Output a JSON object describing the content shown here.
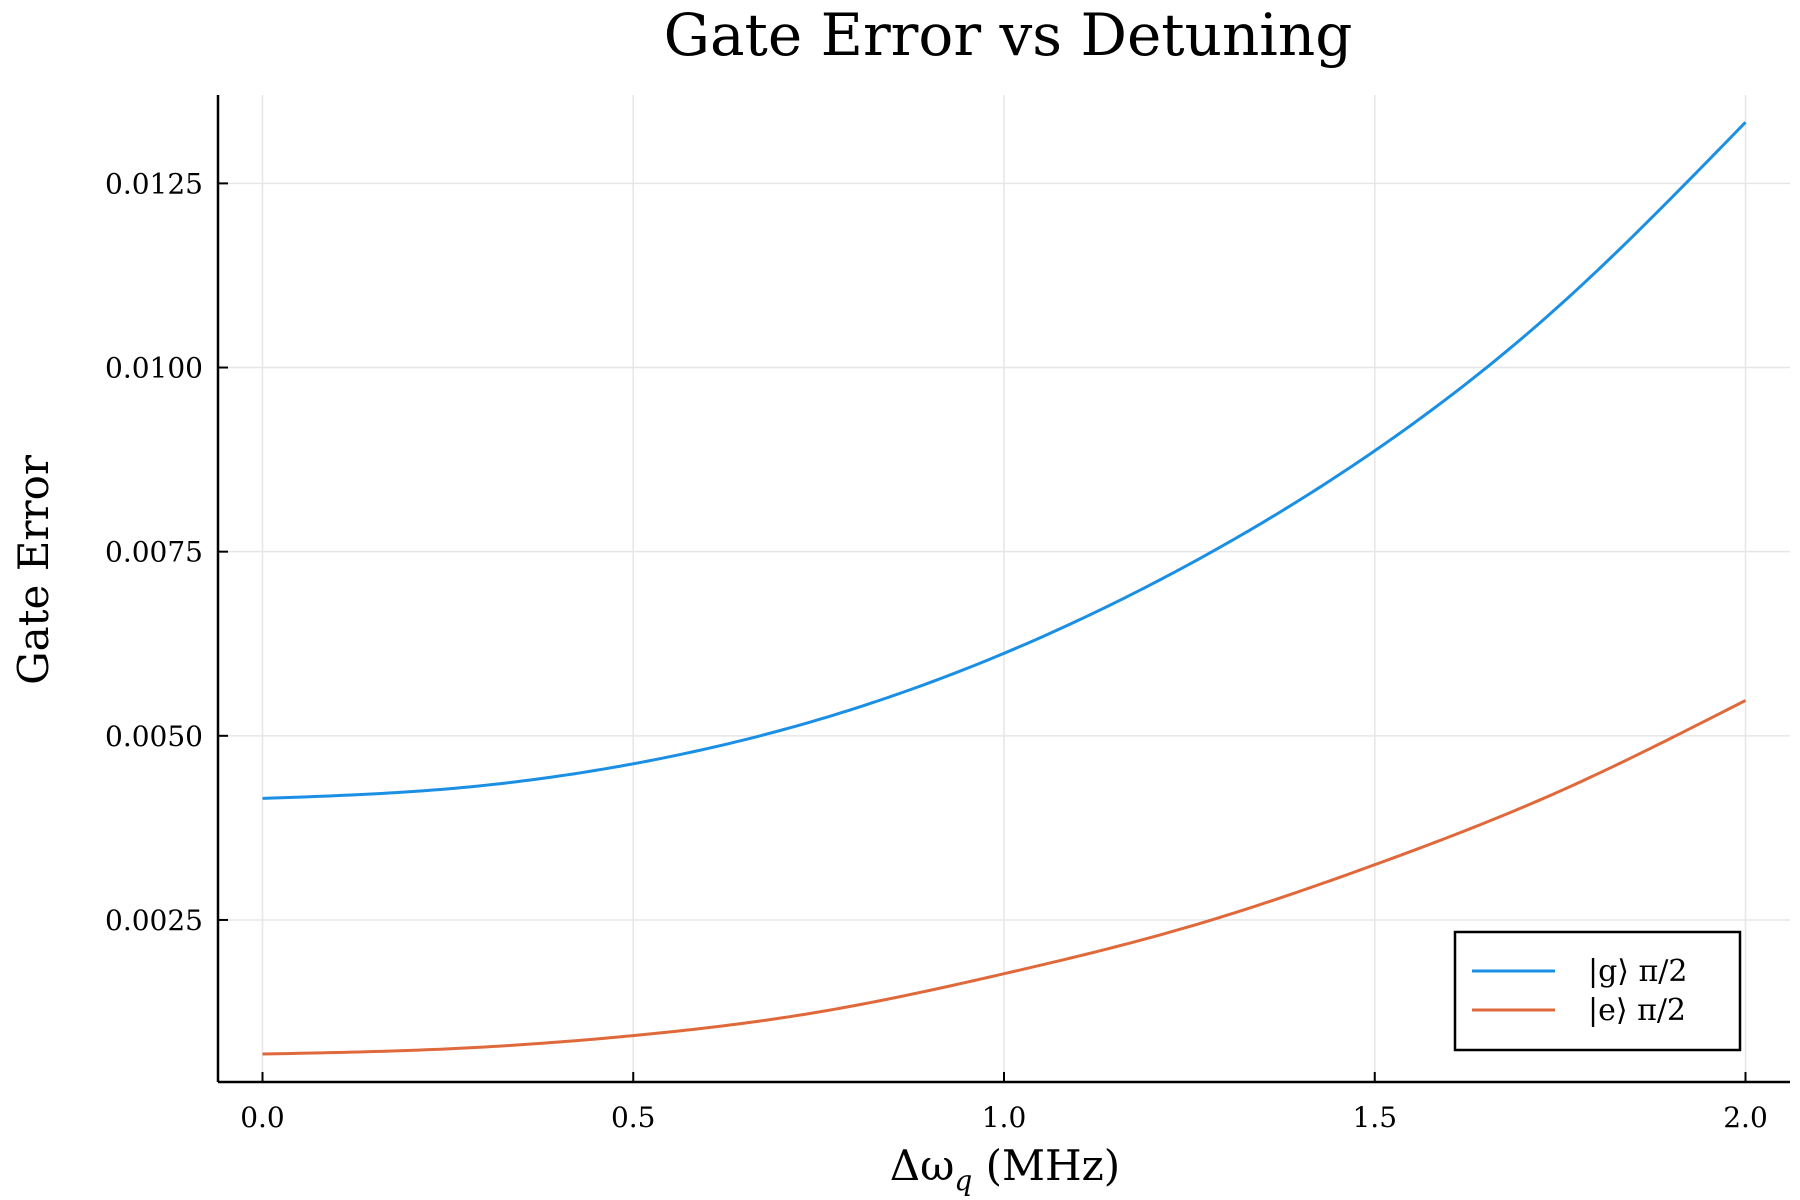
{
  "chart_data": {
    "type": "line",
    "title": "Gate Error vs Detuning",
    "xlabel": "Δω_q (MHz)",
    "ylabel": "Gate Error",
    "xlim": [
      -0.06,
      2.06
    ],
    "ylim": [
      0.0003,
      0.0137
    ],
    "x_ticks": [
      0.0,
      0.5,
      1.0,
      1.5,
      2.0
    ],
    "x_tick_labels": [
      "0.0",
      "0.5",
      "1.0",
      "1.5",
      "2.0"
    ],
    "y_ticks": [
      0.0025,
      0.005,
      0.0075,
      0.01,
      0.0125
    ],
    "y_tick_labels": [
      "0.0025",
      "0.0050",
      "0.0075",
      "0.0100",
      "0.0125"
    ],
    "grid": true,
    "legend_position": "bottom-right",
    "x": [
      0.0,
      0.25,
      0.5,
      0.75,
      1.0,
      1.25,
      1.5,
      1.75,
      2.0
    ],
    "series": [
      {
        "name": "|g⟩ π/2",
        "color": "#1a8fe3",
        "values": [
          0.00415,
          0.00428,
          0.00462,
          0.00522,
          0.00612,
          0.00733,
          0.00887,
          0.01085,
          0.01333
        ]
      },
      {
        "name": "|e⟩ π/2",
        "color": "#e0693c",
        "values": [
          0.00068,
          0.00075,
          0.00093,
          0.00125,
          0.00177,
          0.00241,
          0.00325,
          0.00425,
          0.00548
        ]
      }
    ]
  }
}
